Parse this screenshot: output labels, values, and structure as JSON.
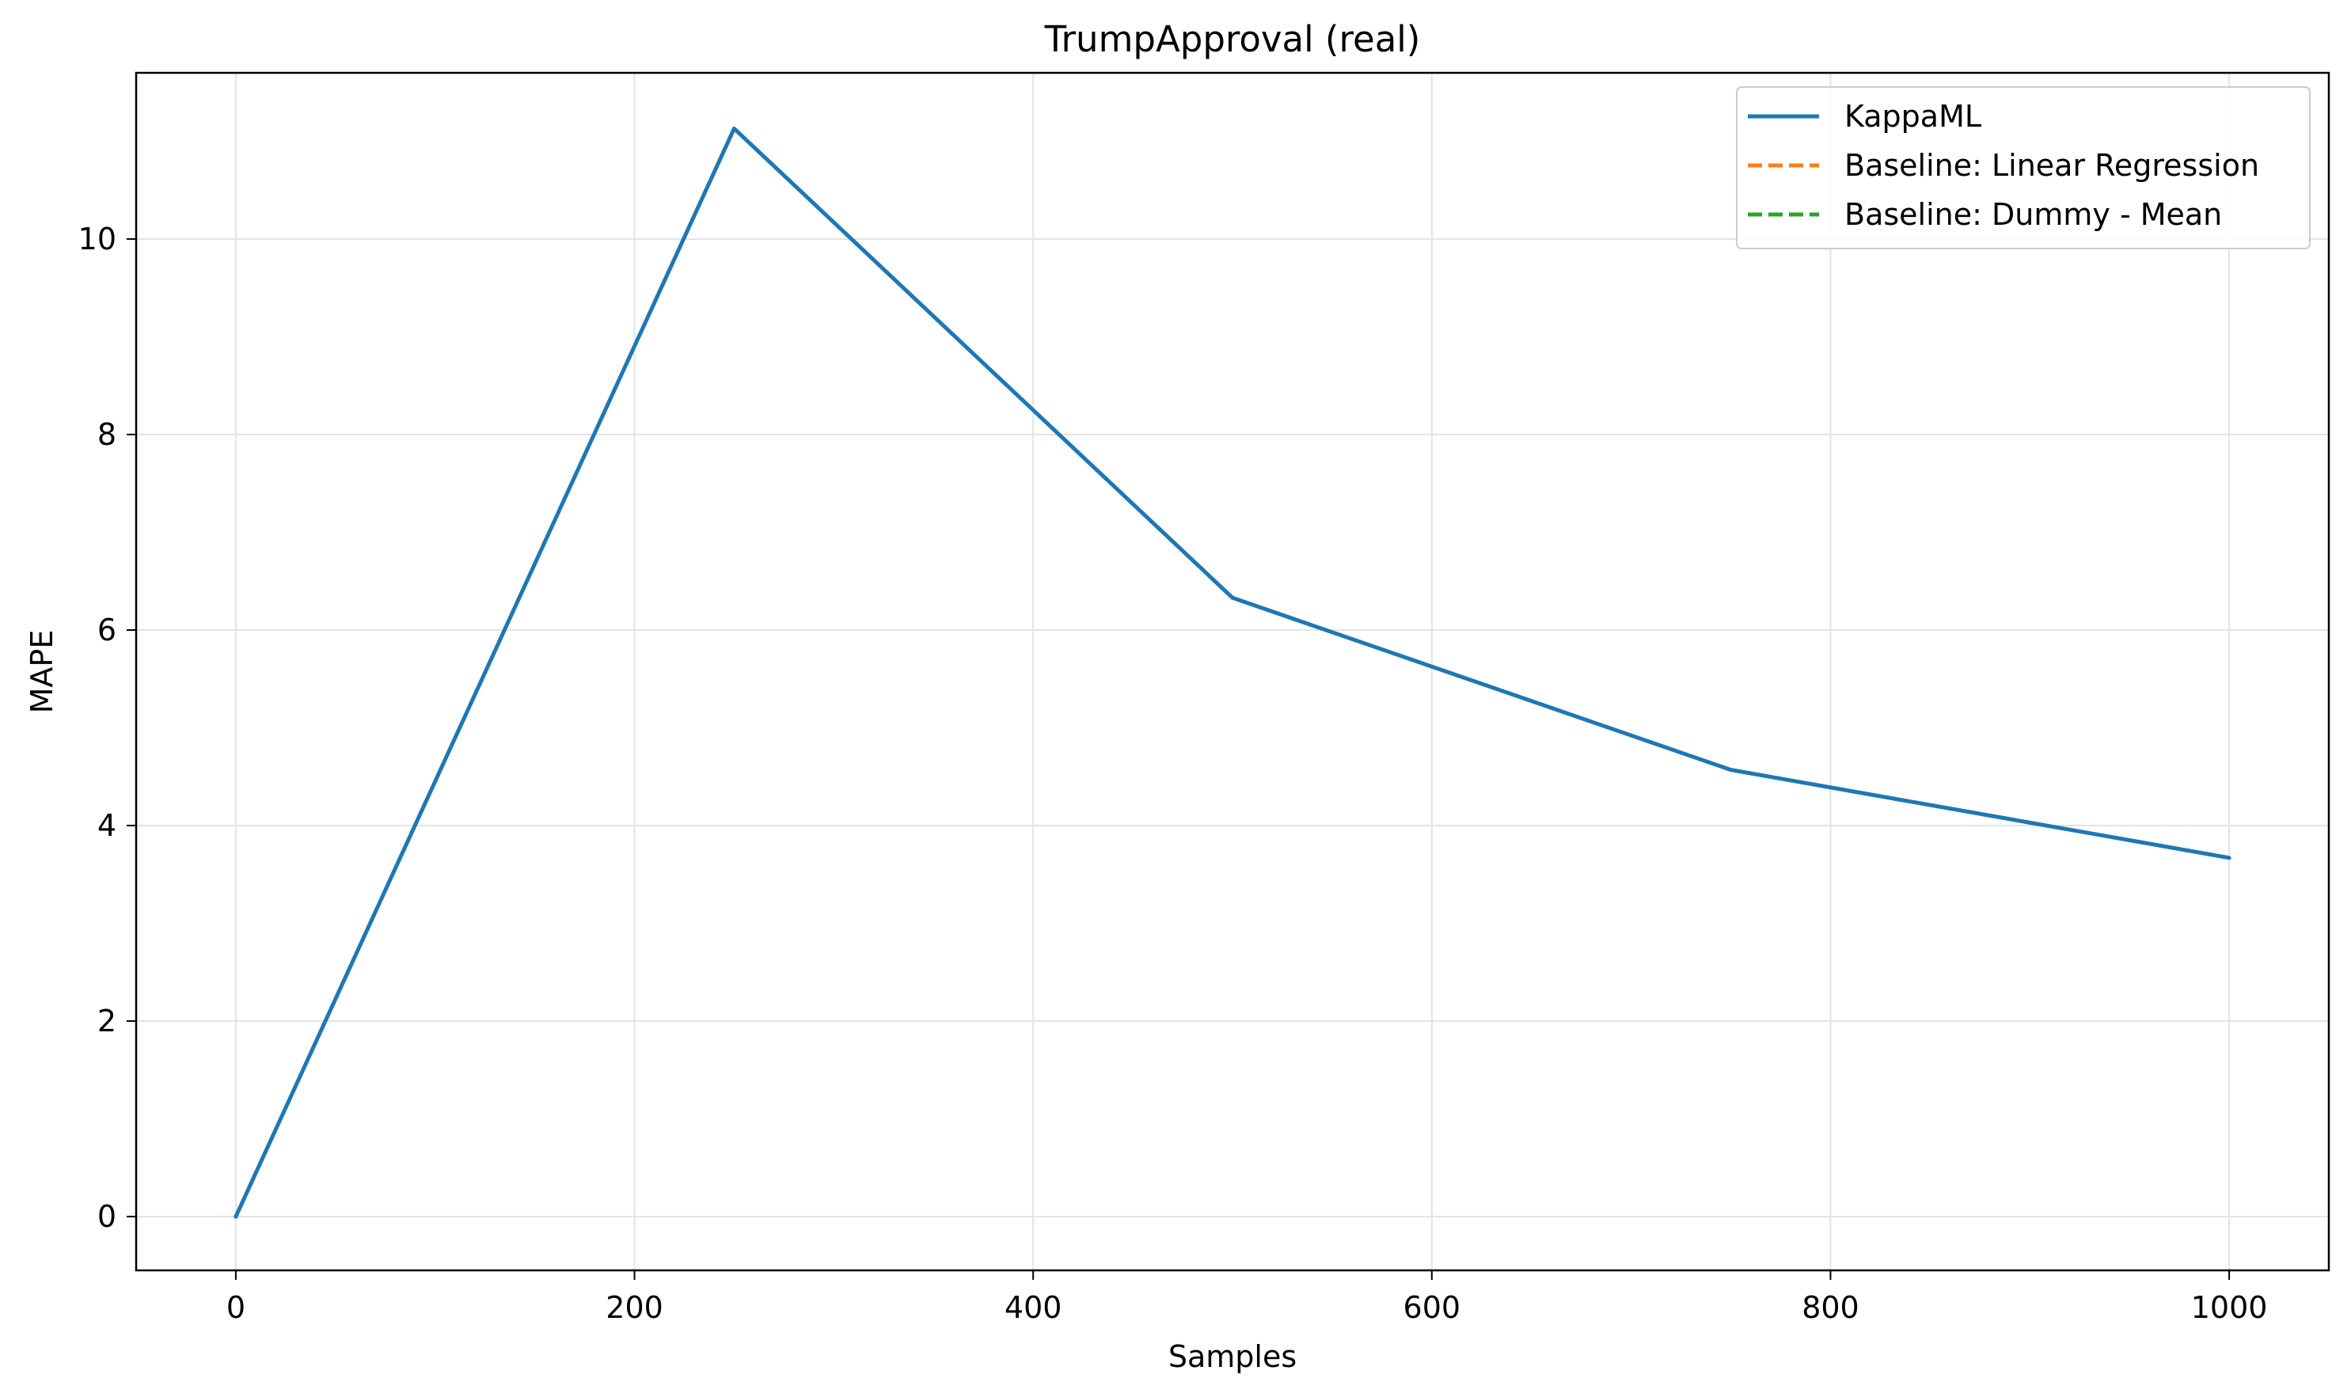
{
  "chart_data": {
    "type": "line",
    "title": "TrumpApproval (real)",
    "xlabel": "Samples",
    "ylabel": "MAPE",
    "xlim": [
      -50,
      1050
    ],
    "ylim": [
      -0.55,
      11.7
    ],
    "xticks": [
      0,
      200,
      400,
      600,
      800,
      1000
    ],
    "yticks": [
      0,
      2,
      4,
      6,
      8,
      10
    ],
    "grid": true,
    "legend_position": "top-right",
    "series": [
      {
        "name": "KappaML",
        "color": "#1f77b4",
        "style": "solid",
        "x": [
          0,
          250,
          500,
          750,
          1000
        ],
        "y": [
          0.0,
          11.13,
          6.33,
          4.57,
          3.67
        ]
      },
      {
        "name": "Baseline: Linear Regression",
        "color": "#ff7f0e",
        "style": "dashed",
        "x": [],
        "y": []
      },
      {
        "name": "Baseline: Dummy - Mean",
        "color": "#2ca02c",
        "style": "dashed",
        "x": [],
        "y": []
      }
    ]
  }
}
